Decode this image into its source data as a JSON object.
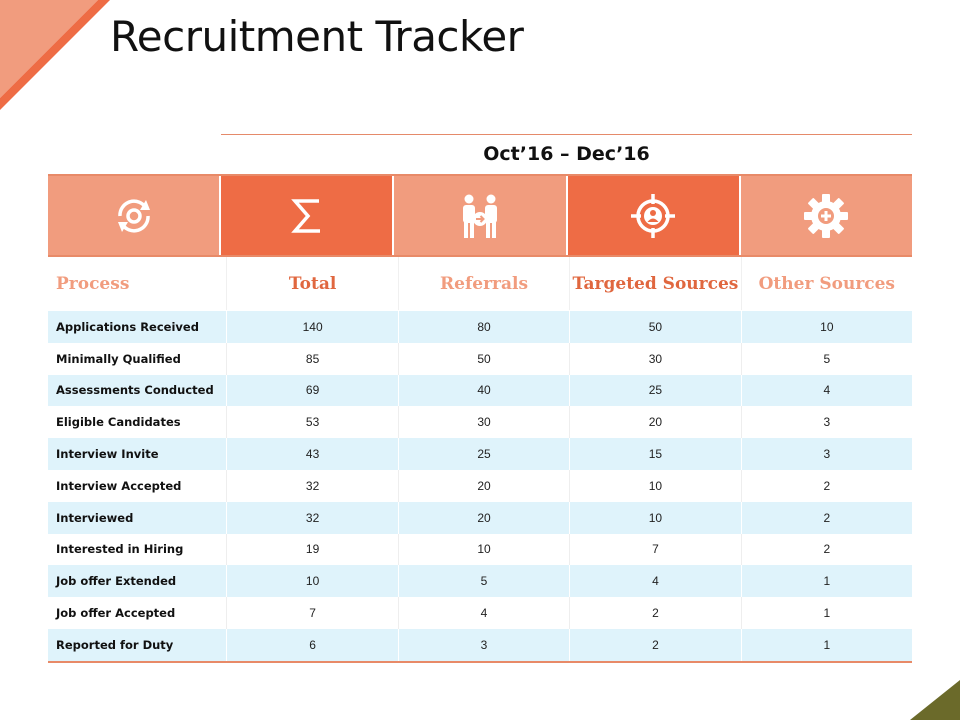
{
  "slide": {
    "title": "Recruitment Tracker",
    "period": "Oct’16 – Dec’16"
  },
  "colors": {
    "accent_light": "#f19c7e",
    "accent_dark": "#ee6c45",
    "row_stripe": "#dff3fb",
    "corner_olive": "#6b6a2a"
  },
  "icons": [
    {
      "name": "process-cycle-icon",
      "shade": "light"
    },
    {
      "name": "sigma-total-icon",
      "shade": "dark"
    },
    {
      "name": "referral-people-icon",
      "shade": "light"
    },
    {
      "name": "target-person-icon",
      "shade": "dark"
    },
    {
      "name": "gear-plus-icon",
      "shade": "light"
    }
  ],
  "table": {
    "headers": [
      "Process",
      "Total",
      "Referrals",
      "Targeted Sources",
      "Other Sources"
    ],
    "rows": [
      [
        "Applications Received",
        "140",
        "80",
        "50",
        "10"
      ],
      [
        "Minimally Qualified",
        "85",
        "50",
        "30",
        "5"
      ],
      [
        "Assessments Conducted",
        "69",
        "40",
        "25",
        "4"
      ],
      [
        "Eligible Candidates",
        "53",
        "30",
        "20",
        "3"
      ],
      [
        "Interview Invite",
        "43",
        "25",
        "15",
        "3"
      ],
      [
        "Interview Accepted",
        "32",
        "20",
        "10",
        "2"
      ],
      [
        "Interviewed",
        "32",
        "20",
        "10",
        "2"
      ],
      [
        "Interested in Hiring",
        "19",
        "10",
        "7",
        "2"
      ],
      [
        "Job offer Extended",
        "10",
        "5",
        "4",
        "1"
      ],
      [
        "Job offer Accepted",
        "7",
        "4",
        "2",
        "1"
      ],
      [
        "Reported for Duty",
        "6",
        "3",
        "2",
        "1"
      ]
    ]
  }
}
